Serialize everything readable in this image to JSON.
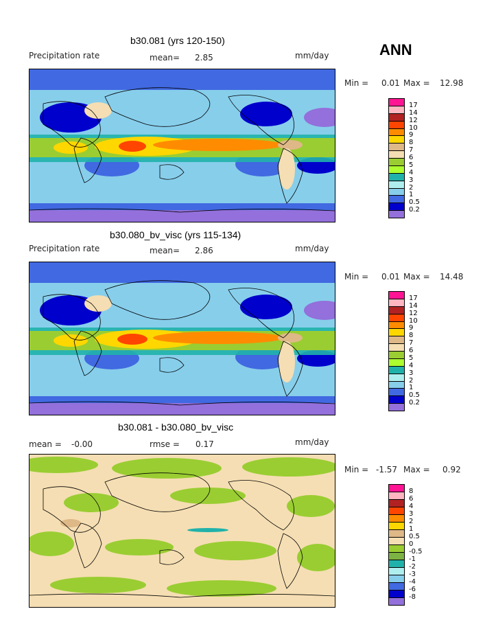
{
  "season": "ANN",
  "units": "mm/day",
  "panels": [
    {
      "title": "b30.081 (yrs 120-150)",
      "left_label": "Precipitation rate",
      "mean_label": "mean=",
      "mean_value": "2.85",
      "min_label": "Min =",
      "min_value": "0.01",
      "max_label": "Max =",
      "max_value": "12.98",
      "levels": [
        "17",
        "14",
        "12",
        "10",
        "9",
        "8",
        "7",
        "6",
        "5",
        "4",
        "3",
        "2",
        "1",
        "0.5",
        "0.2"
      ],
      "colors": [
        "#ff1493",
        "#ffb6c1",
        "#b22222",
        "#ff4500",
        "#ff8c00",
        "#ffd700",
        "#deb887",
        "#f5deb3",
        "#9acd32",
        "#adff2f",
        "#20b2aa",
        "#afeeee",
        "#87ceeb",
        "#4169e1",
        "#0000cd",
        "#9370db"
      ]
    },
    {
      "title": "b30.080_bv_visc (yrs 115-134)",
      "left_label": "Precipitation rate",
      "mean_label": "mean=",
      "mean_value": "2.86",
      "min_label": "Min =",
      "min_value": "0.01",
      "max_label": "Max =",
      "max_value": "14.48",
      "levels": [
        "17",
        "14",
        "12",
        "10",
        "9",
        "8",
        "7",
        "6",
        "5",
        "4",
        "3",
        "2",
        "1",
        "0.5",
        "0.2"
      ],
      "colors": [
        "#ff1493",
        "#ffb6c1",
        "#b22222",
        "#ff4500",
        "#ff8c00",
        "#ffd700",
        "#deb887",
        "#f5deb3",
        "#9acd32",
        "#adff2f",
        "#20b2aa",
        "#afeeee",
        "#87ceeb",
        "#4169e1",
        "#0000cd",
        "#9370db"
      ]
    },
    {
      "title": "b30.081 - b30.080_bv_visc",
      "left_label": "mean =",
      "left_value": "-0.00",
      "mean_label": "rmse =",
      "mean_value": "0.17",
      "min_label": "Min =",
      "min_value": "-1.57",
      "max_label": "Max =",
      "max_value": "0.92",
      "levels": [
        "8",
        "6",
        "4",
        "3",
        "2",
        "1",
        "0.5",
        "0",
        "-0.5",
        "-1",
        "-2",
        "-3",
        "-4",
        "-6",
        "-8"
      ],
      "colors": [
        "#ff1493",
        "#ffb6c1",
        "#b22222",
        "#ff4500",
        "#ff8c00",
        "#ffd700",
        "#deb887",
        "#f5deb3",
        "#9acd32",
        "#7cb342",
        "#20b2aa",
        "#afeeee",
        "#87ceeb",
        "#4169e1",
        "#0000cd",
        "#9370db"
      ]
    }
  ]
}
